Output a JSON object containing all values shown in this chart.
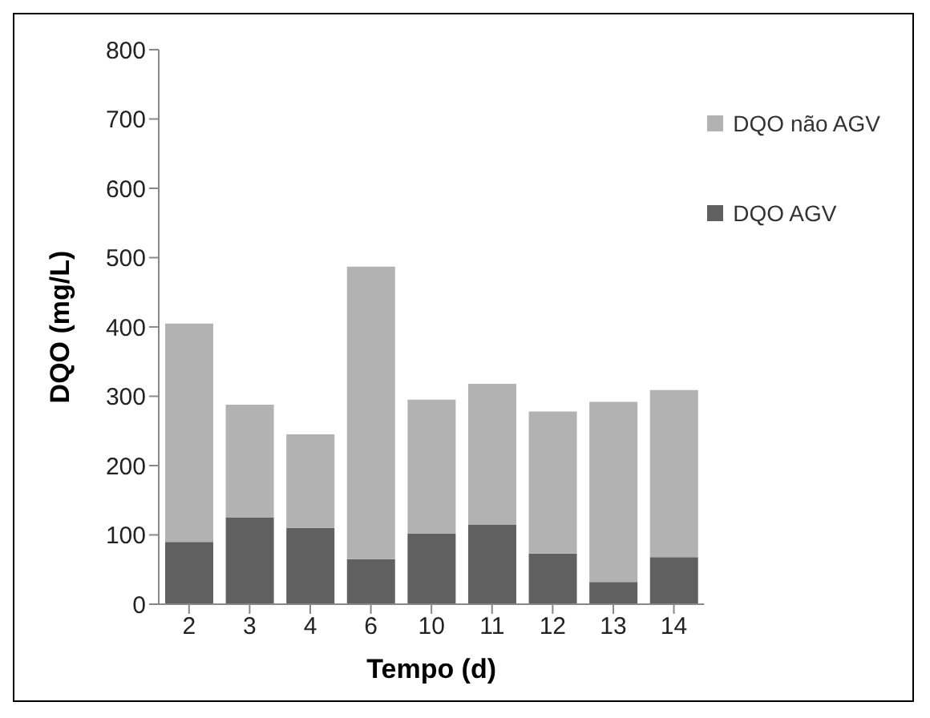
{
  "chart_data": {
    "type": "bar",
    "stacked": true,
    "xlabel": "Tempo (d)",
    "ylabel": "DQO (mg/L)",
    "categories": [
      "2",
      "3",
      "4",
      "6",
      "10",
      "11",
      "12",
      "13",
      "14"
    ],
    "series": [
      {
        "name": "DQO AGV",
        "color": "#606060",
        "values": [
          90,
          125,
          110,
          65,
          102,
          115,
          73,
          32,
          68
        ]
      },
      {
        "name": "DQO não AGV",
        "color": "#b2b2b2",
        "values": [
          315,
          163,
          135,
          422,
          193,
          203,
          205,
          260,
          241
        ]
      }
    ],
    "ylim": [
      0,
      800
    ],
    "yticks": [
      0,
      100,
      200,
      300,
      400,
      500,
      600,
      700,
      800
    ],
    "grid": false,
    "legend": "top right"
  }
}
